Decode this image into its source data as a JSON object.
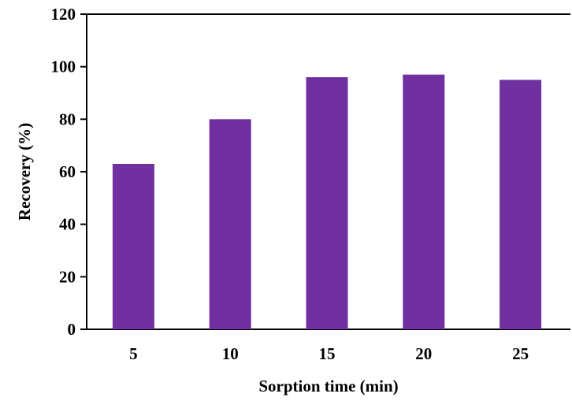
{
  "chart_data": {
    "type": "bar",
    "title": "",
    "xlabel": "Sorption time (min)",
    "ylabel": "Recovery (%)",
    "categories": [
      "5",
      "10",
      "15",
      "20",
      "25"
    ],
    "values": [
      63,
      80,
      96,
      97,
      95
    ],
    "ylim": [
      0,
      120
    ],
    "yticks": [
      "0",
      "20",
      "40",
      "60",
      "80",
      "100",
      "120"
    ],
    "grid": false,
    "legend": "none",
    "bar_color": "#7030A0"
  }
}
